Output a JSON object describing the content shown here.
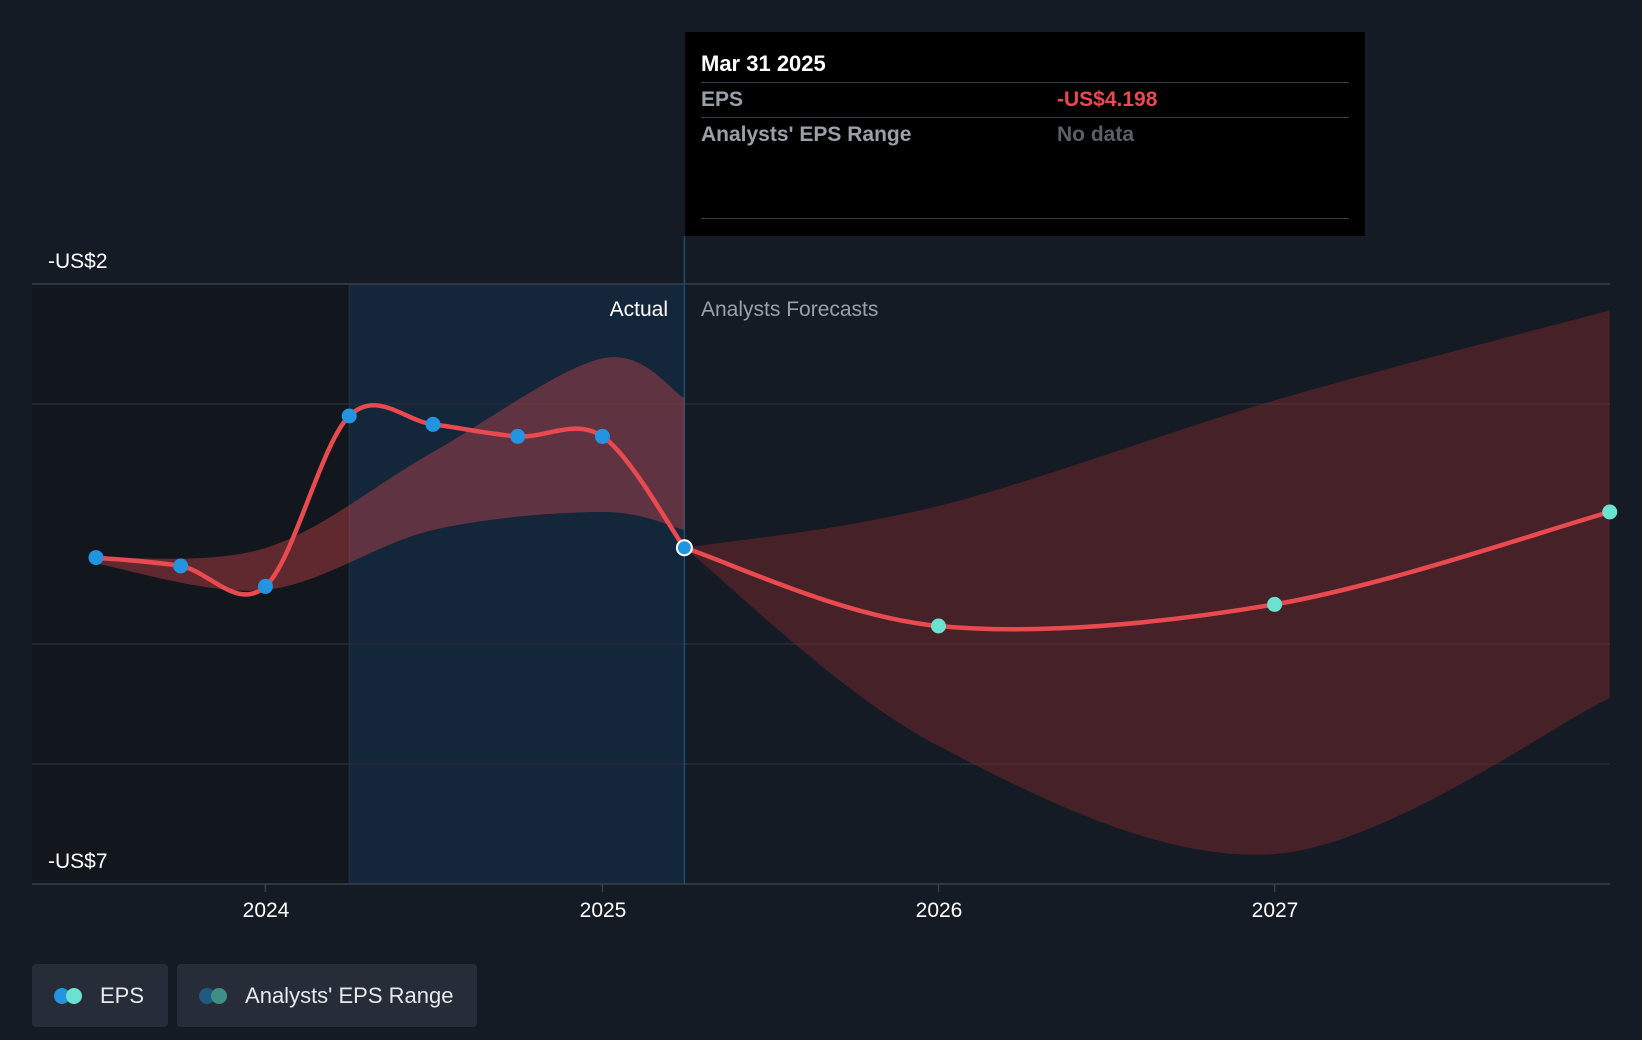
{
  "chart_data": {
    "type": "line",
    "title": "",
    "xlabel": "",
    "ylabel": "",
    "x_ticks": [
      "2024",
      "2025",
      "2026",
      "2027"
    ],
    "y_axis_labels": [
      "-US$2",
      "-US$7"
    ],
    "ylim": [
      -7,
      -2
    ],
    "period_labels": {
      "actual": "Actual",
      "forecast": "Analysts Forecasts"
    },
    "divider_date": "2025-03-31",
    "actual": [
      {
        "date": "2023-07-01",
        "eps": -4.28
      },
      {
        "date": "2023-10-01",
        "eps": -4.35
      },
      {
        "date": "2024-01-01",
        "eps": -4.52
      },
      {
        "date": "2024-04-01",
        "eps": -3.1
      },
      {
        "date": "2024-07-01",
        "eps": -3.17
      },
      {
        "date": "2024-10-01",
        "eps": -3.27
      },
      {
        "date": "2025-01-01",
        "eps": -3.27
      },
      {
        "date": "2025-03-31",
        "eps": -4.198
      }
    ],
    "forecast": [
      {
        "date": "2025-03-31",
        "eps": -4.198
      },
      {
        "date": "2026-01-01",
        "eps": -4.85
      },
      {
        "date": "2027-01-01",
        "eps": -4.67
      },
      {
        "date": "2027-12-31",
        "eps": -3.9
      }
    ],
    "historical_range": [
      {
        "date": "2023-07-01",
        "low": -4.33,
        "high": -4.28
      },
      {
        "date": "2024-01-01",
        "low": -4.55,
        "high": -4.2
      },
      {
        "date": "2024-07-01",
        "low": -4.05,
        "high": -3.4
      },
      {
        "date": "2025-01-01",
        "low": -3.9,
        "high": -2.62
      },
      {
        "date": "2025-03-31",
        "low": -4.05,
        "high": -2.95
      }
    ],
    "forecast_range": [
      {
        "date": "2025-03-31",
        "low": -4.2,
        "high": -4.2
      },
      {
        "date": "2026-01-01",
        "low": -5.85,
        "high": -3.85
      },
      {
        "date": "2027-01-01",
        "low": -6.75,
        "high": -2.97
      },
      {
        "date": "2027-12-31",
        "low": -5.45,
        "high": -2.22
      }
    ]
  },
  "tooltip": {
    "date": "Mar 31 2025",
    "rows": [
      {
        "label": "EPS",
        "value": "-US$4.198"
      },
      {
        "label": "Analysts' EPS Range",
        "value": "No data"
      }
    ]
  },
  "legend": [
    {
      "label": "EPS",
      "colors": [
        "#2394df",
        "#6ae2cf"
      ]
    },
    {
      "label": "Analysts' EPS Range",
      "colors": [
        "#1f5a80",
        "#3e8f85"
      ]
    }
  ],
  "colors": {
    "eps_line": "#e84a4f",
    "actual_marker": "#2394df",
    "forecast_marker": "#6ae2cf",
    "highlight_band": "#13263a",
    "historical_range": "#e84a4f",
    "forecast_range": "#8a2a30"
  }
}
